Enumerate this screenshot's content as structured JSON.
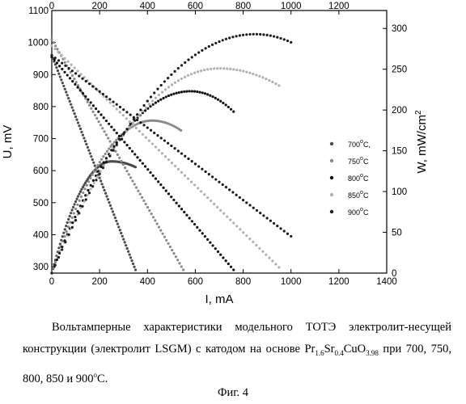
{
  "chart_data": {
    "type": "scatter",
    "x_bottom": {
      "label": "I, mA",
      "range": [
        0,
        1400
      ],
      "ticks": [
        0,
        200,
        400,
        600,
        800,
        1000,
        1200,
        1400
      ]
    },
    "x_top": {
      "label": "",
      "range": [
        0,
        1400
      ],
      "ticks": [
        0,
        200,
        400,
        600,
        800,
        1000,
        1200
      ]
    },
    "y_left": {
      "label": "U, mV",
      "range": [
        280,
        1100
      ],
      "ticks": [
        300,
        400,
        500,
        600,
        700,
        800,
        900,
        1000,
        1100
      ]
    },
    "y_right": {
      "label_main": "W, mW/cm",
      "label_sup": "2",
      "range": [
        0,
        322
      ],
      "ticks": [
        0,
        50,
        100,
        150,
        200,
        250,
        300
      ]
    },
    "legend_position": "right",
    "series": [
      {
        "name": "700",
        "unit": "C,",
        "color": "#4a4a4a",
        "voltage": {
          "I": [
            0,
            350
          ],
          "U": [
            960,
            290
          ]
        },
        "power": {
          "I_max": 350,
          "W_peak": 137,
          "I_peak": 250,
          "W_end": 130
        }
      },
      {
        "name": "750",
        "unit": "C",
        "color": "#8a8a8a",
        "voltage": {
          "I": [
            0,
            550
          ],
          "U": [
            1010,
            290
          ]
        },
        "power": {
          "I_max": 540,
          "W_peak": 187,
          "I_peak": 420,
          "W_end": 175
        }
      },
      {
        "name": "800",
        "unit": "C",
        "color": "#111111",
        "voltage": {
          "I": [
            0,
            760
          ],
          "U": [
            955,
            290
          ]
        },
        "power": {
          "I_max": 760,
          "W_peak": 223,
          "I_peak": 580,
          "W_end": 198
        }
      },
      {
        "name": "850",
        "unit": "C",
        "color": "#b0b0b0",
        "voltage": {
          "I": [
            0,
            950
          ],
          "U": [
            990,
            298
          ]
        },
        "power": {
          "I_max": 950,
          "W_peak": 251,
          "I_peak": 700,
          "W_end": 230
        }
      },
      {
        "name": "900",
        "unit": "C",
        "color": "#1c1c1c",
        "voltage": {
          "I": [
            0,
            1000
          ],
          "U": [
            960,
            395
          ]
        },
        "power": {
          "I_max": 1000,
          "W_peak": 293,
          "I_peak": 850,
          "W_end": 283
        }
      }
    ]
  },
  "caption": {
    "p1_text": "Вольтамперные характеристики модельного ТОТЭ электролит-несущей конструкции (электролит LSGM) с катодом на основе ",
    "formula": [
      {
        "t": "Pr"
      },
      {
        "sub": "1.6"
      },
      {
        "t": "Sr"
      },
      {
        "sub": "0.4"
      },
      {
        "t": "CuO"
      },
      {
        "sub": "3.98"
      }
    ],
    "p1_tail": " при 700, 750, 800, 850 и 900",
    "deg": "o",
    "unit": "C."
  },
  "figure_label": "Фиг. 4"
}
